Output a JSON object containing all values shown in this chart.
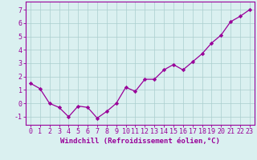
{
  "x": [
    0,
    1,
    2,
    3,
    4,
    5,
    6,
    7,
    8,
    9,
    10,
    11,
    12,
    13,
    14,
    15,
    16,
    17,
    18,
    19,
    20,
    21,
    22,
    23
  ],
  "y": [
    1.5,
    1.1,
    0.0,
    -0.3,
    -1.0,
    -0.2,
    -0.3,
    -1.1,
    -0.6,
    0.0,
    1.2,
    0.9,
    1.8,
    1.8,
    2.5,
    2.9,
    2.5,
    3.1,
    3.7,
    4.5,
    5.1,
    6.1,
    6.5,
    7.0
  ],
  "line_color": "#990099",
  "marker": "D",
  "marker_size": 2.2,
  "line_width": 0.9,
  "bg_color": "#daf0f0",
  "grid_color": "#aacece",
  "xlabel": "Windchill (Refroidissement éolien,°C)",
  "xlabel_fontsize": 6.5,
  "ylabel_ticks": [
    -1,
    0,
    1,
    2,
    3,
    4,
    5,
    6,
    7
  ],
  "xlim": [
    -0.5,
    23.5
  ],
  "ylim": [
    -1.6,
    7.6
  ],
  "tick_fontsize": 6.0,
  "axis_color": "#990099",
  "spine_color": "#990099"
}
